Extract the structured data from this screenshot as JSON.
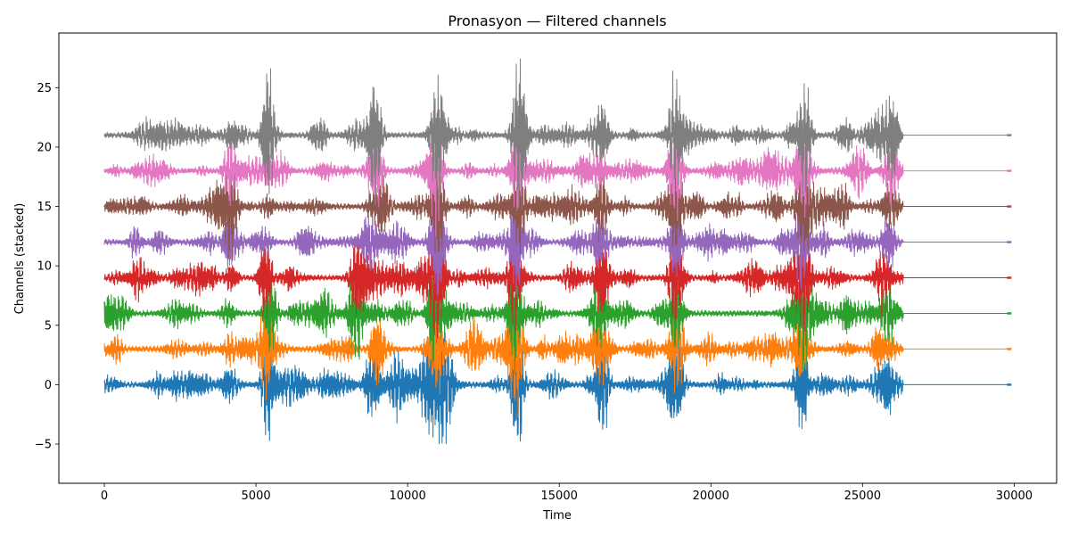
{
  "chart_data": {
    "type": "line",
    "title": "Pronasyon — Filtered channels",
    "xlabel": "Time",
    "ylabel": "Channels (stacked)",
    "xlim": [
      -1500,
      31400
    ],
    "ylim": [
      -8.3,
      29.6
    ],
    "xticks": [
      0,
      5000,
      10000,
      15000,
      20000,
      25000,
      30000
    ],
    "xtick_labels": [
      "0",
      "5000",
      "10000",
      "15000",
      "20000",
      "25000",
      "30000"
    ],
    "yticks": [
      -5,
      0,
      5,
      10,
      15,
      20,
      25
    ],
    "ytick_labels": [
      "−5",
      "0",
      "5",
      "10",
      "15",
      "20",
      "25"
    ],
    "grid": false,
    "legend": "none",
    "signal_range": [
      0,
      26350
    ],
    "flat_tail": [
      26350,
      29850
    ],
    "burst_times": [
      4150,
      5400,
      8900,
      10900,
      13600,
      16400,
      18900,
      23000,
      25800
    ],
    "series": [
      {
        "offset": 0,
        "color": "#1f77b4",
        "bursts": [
          {
            "t": 5400,
            "a": 3.2
          },
          {
            "t": 8800,
            "a": 1.8
          },
          {
            "t": 10700,
            "a": 3.5
          },
          {
            "t": 11200,
            "a": 4.2
          },
          {
            "t": 13600,
            "a": 4.8
          },
          {
            "t": 16400,
            "a": 1.8
          },
          {
            "t": 18800,
            "a": 3.8
          },
          {
            "t": 23000,
            "a": 3.0
          },
          {
            "t": 25800,
            "a": 1.6
          }
        ]
      },
      {
        "offset": 3,
        "color": "#ff7f0e",
        "bursts": [
          {
            "t": 5300,
            "a": 2.4
          },
          {
            "t": 9000,
            "a": 2.6
          },
          {
            "t": 11000,
            "a": 3.4
          },
          {
            "t": 13500,
            "a": 3.8
          },
          {
            "t": 16200,
            "a": 1.6
          },
          {
            "t": 18900,
            "a": 2.2
          },
          {
            "t": 23000,
            "a": 2.2
          },
          {
            "t": 25500,
            "a": 1.6
          }
        ]
      },
      {
        "offset": 6,
        "color": "#2ca02c",
        "bursts": [
          {
            "t": 5500,
            "a": 2.0
          },
          {
            "t": 8300,
            "a": 3.6
          },
          {
            "t": 10800,
            "a": 3.2
          },
          {
            "t": 13500,
            "a": 3.2
          },
          {
            "t": 16300,
            "a": 1.6
          },
          {
            "t": 18800,
            "a": 2.0
          },
          {
            "t": 23100,
            "a": 2.4
          },
          {
            "t": 25800,
            "a": 1.4
          }
        ]
      },
      {
        "offset": 9,
        "color": "#d62728",
        "bursts": [
          {
            "t": 5300,
            "a": 2.6
          },
          {
            "t": 8400,
            "a": 3.0
          },
          {
            "t": 11000,
            "a": 3.2
          },
          {
            "t": 13500,
            "a": 3.0
          },
          {
            "t": 16400,
            "a": 1.6
          },
          {
            "t": 18800,
            "a": 2.4
          },
          {
            "t": 23100,
            "a": 2.4
          },
          {
            "t": 25600,
            "a": 1.6
          }
        ]
      },
      {
        "offset": 12,
        "color": "#9467bd",
        "bursts": [
          {
            "t": 4100,
            "a": 1.8
          },
          {
            "t": 8700,
            "a": 2.2
          },
          {
            "t": 11000,
            "a": 3.2
          },
          {
            "t": 13600,
            "a": 2.8
          },
          {
            "t": 16300,
            "a": 1.4
          },
          {
            "t": 18900,
            "a": 2.0
          },
          {
            "t": 23000,
            "a": 2.0
          },
          {
            "t": 25900,
            "a": 1.4
          }
        ]
      },
      {
        "offset": 15,
        "color": "#8c564b",
        "bursts": [
          {
            "t": 4200,
            "a": 1.6
          },
          {
            "t": 9200,
            "a": 2.2
          },
          {
            "t": 11000,
            "a": 3.0
          },
          {
            "t": 13700,
            "a": 2.6
          },
          {
            "t": 16400,
            "a": 1.4
          },
          {
            "t": 18800,
            "a": 2.2
          },
          {
            "t": 23100,
            "a": 2.0
          },
          {
            "t": 26000,
            "a": 1.4
          }
        ]
      },
      {
        "offset": 18,
        "color": "#e377c2",
        "bursts": [
          {
            "t": 4150,
            "a": 1.6
          },
          {
            "t": 9000,
            "a": 2.6
          },
          {
            "t": 10900,
            "a": 3.0
          },
          {
            "t": 13600,
            "a": 2.4
          },
          {
            "t": 15800,
            "a": 1.4
          },
          {
            "t": 18800,
            "a": 2.2
          },
          {
            "t": 23000,
            "a": 2.2
          },
          {
            "t": 26000,
            "a": 1.6
          }
        ]
      },
      {
        "offset": 21,
        "color": "#7f7f7f",
        "bursts": [
          {
            "t": 5400,
            "a": 4.2
          },
          {
            "t": 8900,
            "a": 3.6
          },
          {
            "t": 11000,
            "a": 3.6
          },
          {
            "t": 13700,
            "a": 4.6
          },
          {
            "t": 16400,
            "a": 1.6
          },
          {
            "t": 18800,
            "a": 3.2
          },
          {
            "t": 23100,
            "a": 3.4
          },
          {
            "t": 26000,
            "a": 3.0
          }
        ]
      }
    ]
  }
}
